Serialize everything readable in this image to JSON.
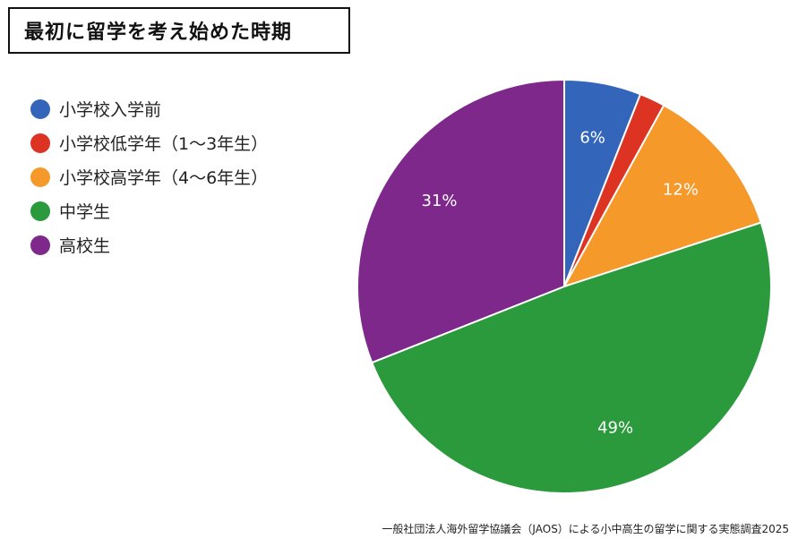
{
  "header": {
    "title": "最初に留学を考え始めた時期"
  },
  "footer": {
    "source": "一般社団法人海外留学協議会（JAOS）による小中高生の留学に関する実態調査2025"
  },
  "chart_data": {
    "type": "pie",
    "title": "最初に留学を考え始めた時期",
    "legend_placement": "left",
    "slices": [
      {
        "name": "小学校入学前",
        "value": 6,
        "label": "6%",
        "color": "#3366bb"
      },
      {
        "name": "小学校低学年（1～3年生）",
        "value": 2,
        "label": "",
        "color": "#dd3322"
      },
      {
        "name": "小学校高学年（4～6年生）",
        "value": 12,
        "label": "12%",
        "color": "#f59a2a"
      },
      {
        "name": "中学生",
        "value": 49,
        "label": "49%",
        "color": "#2a9a3c"
      },
      {
        "name": "高校生",
        "value": 31,
        "label": "31%",
        "color": "#7e288c"
      }
    ]
  }
}
